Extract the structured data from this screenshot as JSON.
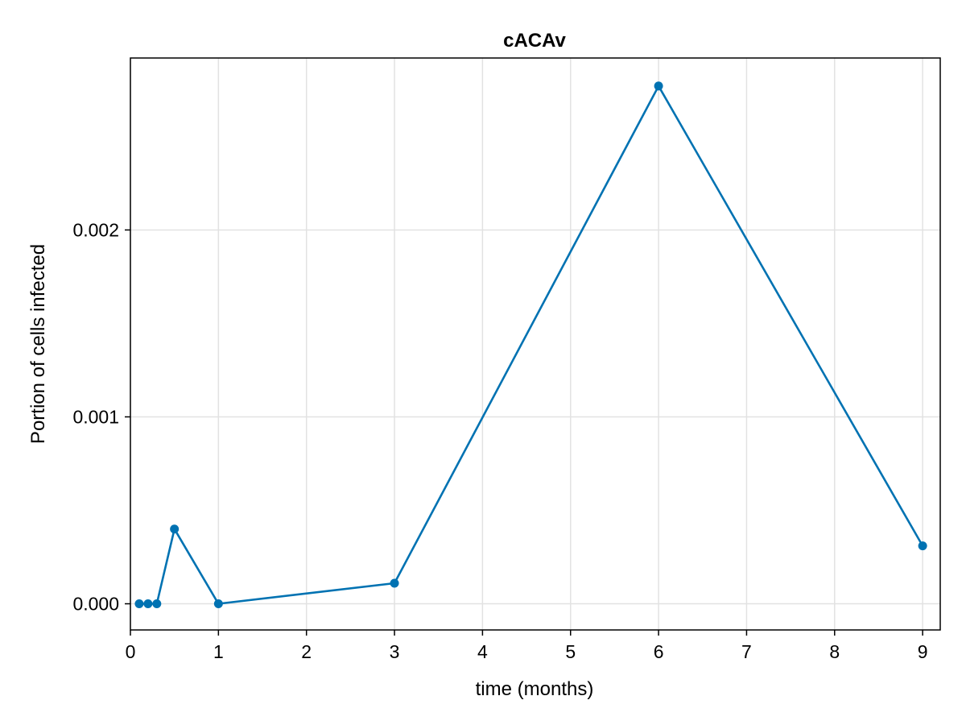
{
  "chart_data": {
    "type": "line",
    "title": "cACAv",
    "xlabel": "time (months)",
    "ylabel": "Portion of cells infected",
    "xlim": [
      0,
      9.2
    ],
    "ylim": [
      -0.00014,
      0.00292
    ],
    "xticks": [
      0,
      1,
      2,
      3,
      4,
      5,
      6,
      7,
      8,
      9
    ],
    "xtick_labels": [
      "0",
      "1",
      "2",
      "3",
      "4",
      "5",
      "6",
      "7",
      "8",
      "9"
    ],
    "yticks": [
      0,
      0.001,
      0.002
    ],
    "ytick_labels": [
      "0.000",
      "0.001",
      "0.002"
    ],
    "grid": true,
    "color": "#0072b2",
    "series": [
      {
        "x": [
          0.1,
          0.2,
          0.3,
          0.5,
          1,
          3,
          6,
          9
        ],
        "y": [
          0,
          0,
          0,
          0.0004,
          0,
          0.00011,
          0.00277,
          0.00031
        ]
      }
    ]
  }
}
